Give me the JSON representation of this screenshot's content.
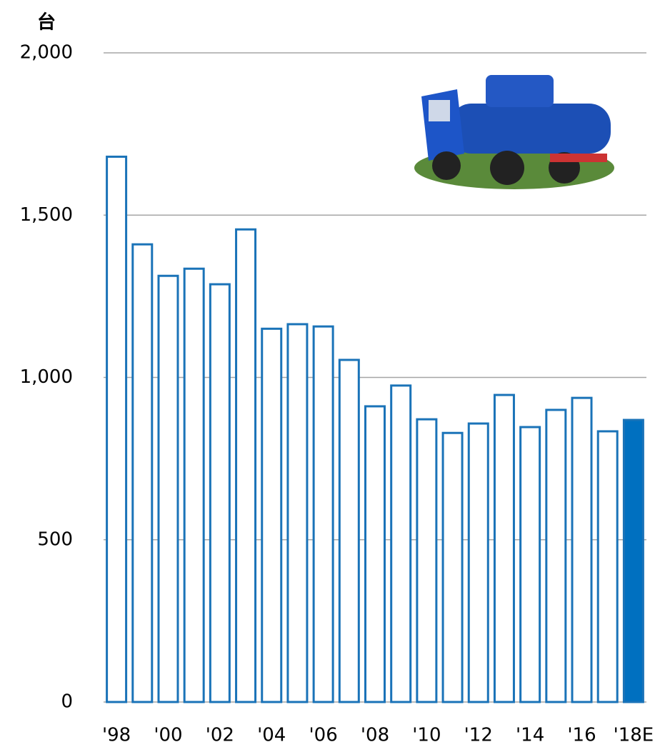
{
  "chart_data": {
    "type": "bar",
    "ylabel": "台",
    "categories": [
      "'98",
      null,
      "'00",
      null,
      "'02",
      null,
      "'04",
      null,
      "'06",
      null,
      "'08",
      null,
      "'10",
      null,
      "'12",
      null,
      "'14",
      null,
      "'16",
      null,
      "'18E"
    ],
    "values": [
      1680,
      1410,
      1313,
      1335,
      1287,
      1456,
      1150,
      1164,
      1157,
      1054,
      911,
      975,
      871,
      829,
      858,
      946,
      847,
      900,
      937,
      834,
      869
    ],
    "edge_color": "#1a73b8",
    "fill_colors": [
      "#ffffff",
      "#ffffff",
      "#ffffff",
      "#ffffff",
      "#ffffff",
      "#ffffff",
      "#ffffff",
      "#ffffff",
      "#ffffff",
      "#ffffff",
      "#ffffff",
      "#ffffff",
      "#ffffff",
      "#ffffff",
      "#ffffff",
      "#ffffff",
      "#ffffff",
      "#ffffff",
      "#ffffff",
      "#ffffff",
      "#0070c0"
    ],
    "ylim": [
      0,
      2000
    ],
    "yticks": [
      0,
      500,
      {
        "value": 1000,
        "label": "1,000"
      },
      {
        "value": 1500,
        "label": "1,500"
      },
      {
        "value": 2000,
        "label": "2,000"
      }
    ],
    "grid": true
  }
}
